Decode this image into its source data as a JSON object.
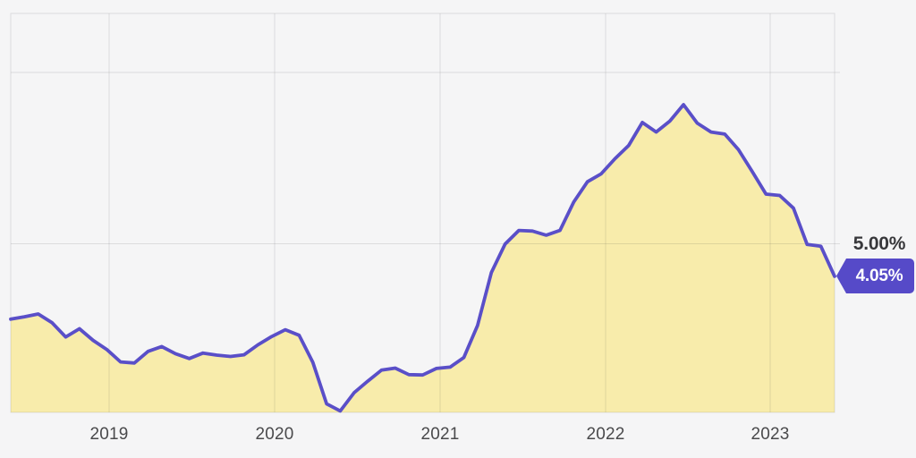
{
  "chart_data": {
    "type": "area",
    "x": [
      "2018-05",
      "2018-06",
      "2018-07",
      "2018-08",
      "2018-09",
      "2018-10",
      "2018-11",
      "2018-12",
      "2019-01",
      "2019-02",
      "2019-03",
      "2019-04",
      "2019-05",
      "2019-06",
      "2019-07",
      "2019-08",
      "2019-09",
      "2019-10",
      "2019-11",
      "2019-12",
      "2020-01",
      "2020-02",
      "2020-03",
      "2020-04",
      "2020-05",
      "2020-06",
      "2020-07",
      "2020-08",
      "2020-09",
      "2020-10",
      "2020-11",
      "2020-12",
      "2021-01",
      "2021-02",
      "2021-03",
      "2021-04",
      "2021-05",
      "2021-06",
      "2021-07",
      "2021-08",
      "2021-09",
      "2021-10",
      "2021-11",
      "2021-12",
      "2022-01",
      "2022-02",
      "2022-03",
      "2022-04",
      "2022-05",
      "2022-06",
      "2022-07",
      "2022-08",
      "2022-09",
      "2022-10",
      "2022-11",
      "2022-12",
      "2023-01",
      "2023-02",
      "2023-03",
      "2023-04",
      "2023-05"
    ],
    "values": [
      2.8,
      2.87,
      2.95,
      2.7,
      2.28,
      2.52,
      2.18,
      1.91,
      1.55,
      1.52,
      1.86,
      2.0,
      1.79,
      1.65,
      1.81,
      1.75,
      1.71,
      1.76,
      2.05,
      2.29,
      2.49,
      2.33,
      1.54,
      0.33,
      0.12,
      0.65,
      0.99,
      1.31,
      1.37,
      1.18,
      1.17,
      1.36,
      1.4,
      1.68,
      2.62,
      4.16,
      4.99,
      5.39,
      5.37,
      5.25,
      5.39,
      6.22,
      6.81,
      7.04,
      7.48,
      7.87,
      8.54,
      8.26,
      8.58,
      9.06,
      8.52,
      8.26,
      8.2,
      7.75,
      7.11,
      6.45,
      6.41,
      6.04,
      4.98,
      4.93,
      4.05
    ],
    "x_tick_labels": [
      "2019",
      "2020",
      "2021",
      "2022",
      "2023"
    ],
    "y_axis": {
      "gridline_values_pct": [
        5,
        10
      ],
      "visible_label": "5.00%",
      "ylim_pct": [
        0,
        11.8
      ]
    },
    "current_value_label": "4.05%",
    "grid": true,
    "legend": "none",
    "colors": {
      "background": "#f5f5f6",
      "line": "#5a4fc8",
      "fill": "#f8ecab",
      "badge_background": "#564ac8",
      "badge_text": "#ffffff",
      "grid_line": "rgba(40,40,45,0.12)",
      "axis_text": "#4a4a4c",
      "y_label_text": "#38383b"
    }
  }
}
